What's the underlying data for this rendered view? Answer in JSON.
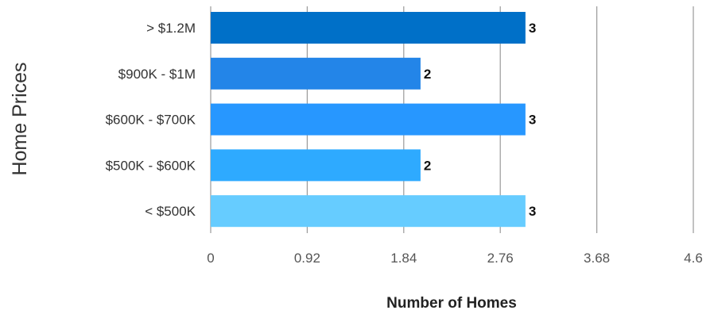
{
  "chart_data": {
    "type": "bar",
    "orientation": "horizontal",
    "categories": [
      "> $1.2M",
      "$900K - $1M",
      "$600K - $700K",
      "$500K - $600K",
      "< $500K"
    ],
    "values": [
      3,
      2,
      3,
      2,
      3
    ],
    "data_labels": [
      "3",
      "2",
      "3",
      "2",
      "3"
    ],
    "bar_colors": [
      "#0070c8",
      "#2385e8",
      "#2797ff",
      "#2eaaff",
      "#66ccff"
    ],
    "xlabel": "Number of Homes",
    "ylabel": "Home Prices",
    "xlim": [
      0,
      4.6
    ],
    "x_ticks": [
      0,
      0.92,
      1.84,
      2.76,
      3.68,
      4.6
    ],
    "x_tick_labels": [
      "0",
      "0.92",
      "1.84",
      "2.76",
      "3.68",
      "4.6"
    ],
    "grid": true,
    "legend": "none"
  }
}
